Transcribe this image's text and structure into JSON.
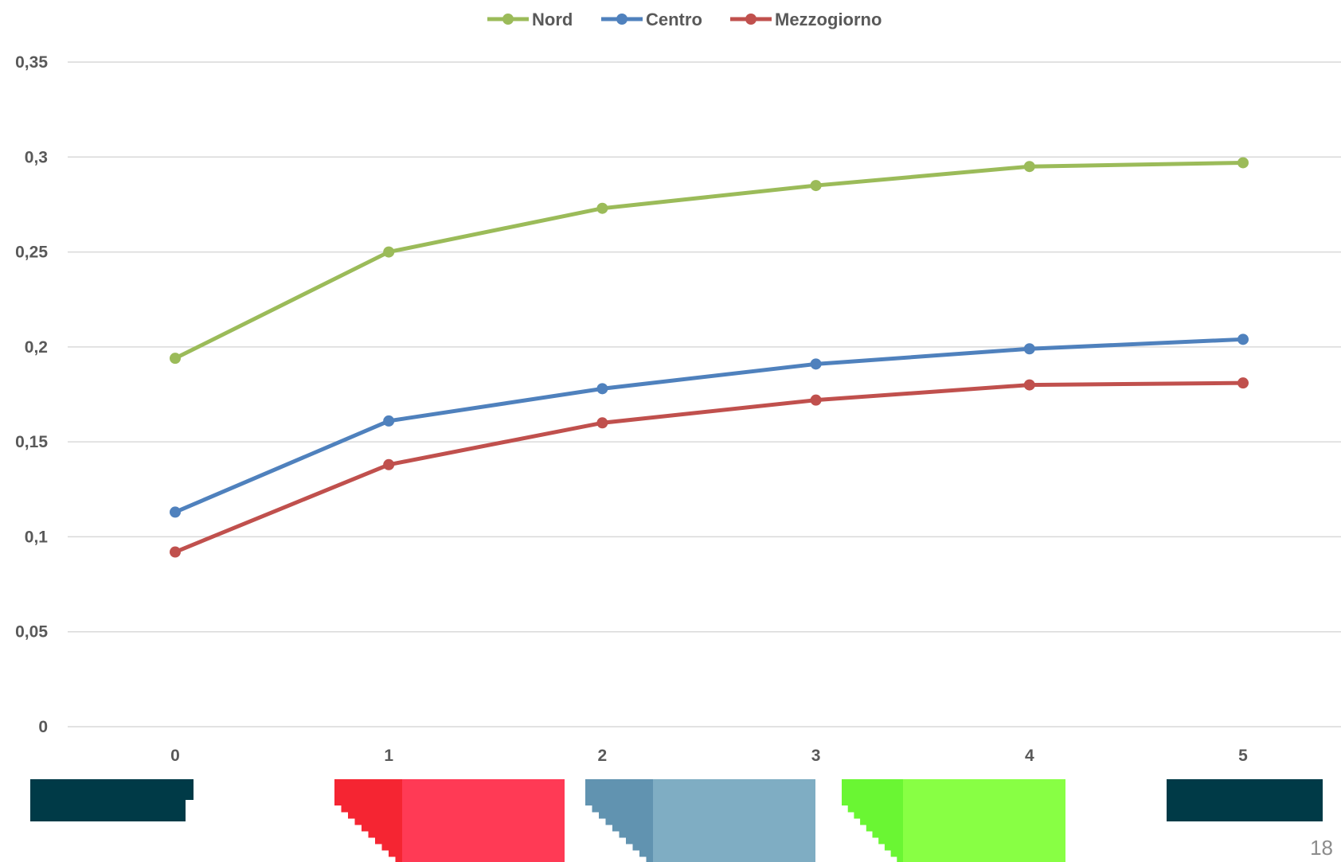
{
  "chart_data": {
    "type": "line",
    "title": "",
    "xlabel": "",
    "ylabel": "",
    "x": [
      "0",
      "1",
      "2",
      "3",
      "4",
      "5"
    ],
    "ylim": [
      0,
      0.35
    ],
    "y_ticks": [
      "0",
      "0,05",
      "0,1",
      "0,15",
      "0,2",
      "0,25",
      "0,3",
      "0,35"
    ],
    "y_tick_values": [
      0,
      0.05,
      0.1,
      0.15,
      0.2,
      0.25,
      0.3,
      0.35
    ],
    "grid": "horizontal",
    "legend_position": "top",
    "series": [
      {
        "name": "Nord",
        "color": "#9BBB59",
        "values": [
          0.194,
          0.25,
          0.273,
          0.285,
          0.295,
          0.297
        ]
      },
      {
        "name": "Centro",
        "color": "#4F81BD",
        "values": [
          0.113,
          0.161,
          0.178,
          0.191,
          0.199,
          0.204
        ]
      },
      {
        "name": "Mezzogiorno",
        "color": "#C0504D",
        "values": [
          0.092,
          0.138,
          0.16,
          0.172,
          0.18,
          0.181
        ]
      }
    ]
  },
  "decorations": {
    "blocks": [
      {
        "name": "dark-block-left",
        "main": "#003A47",
        "shade": "#003A47"
      },
      {
        "name": "red-block",
        "main": "#FF3A55",
        "shade": "#F52532"
      },
      {
        "name": "blue-block",
        "main": "#7FADC3",
        "shade": "#6193B0"
      },
      {
        "name": "green-block",
        "main": "#88FF44",
        "shade": "#6AF633"
      },
      {
        "name": "dark-block-right",
        "main": "#003A47",
        "shade": "#003A47"
      }
    ]
  },
  "page_number": "18"
}
